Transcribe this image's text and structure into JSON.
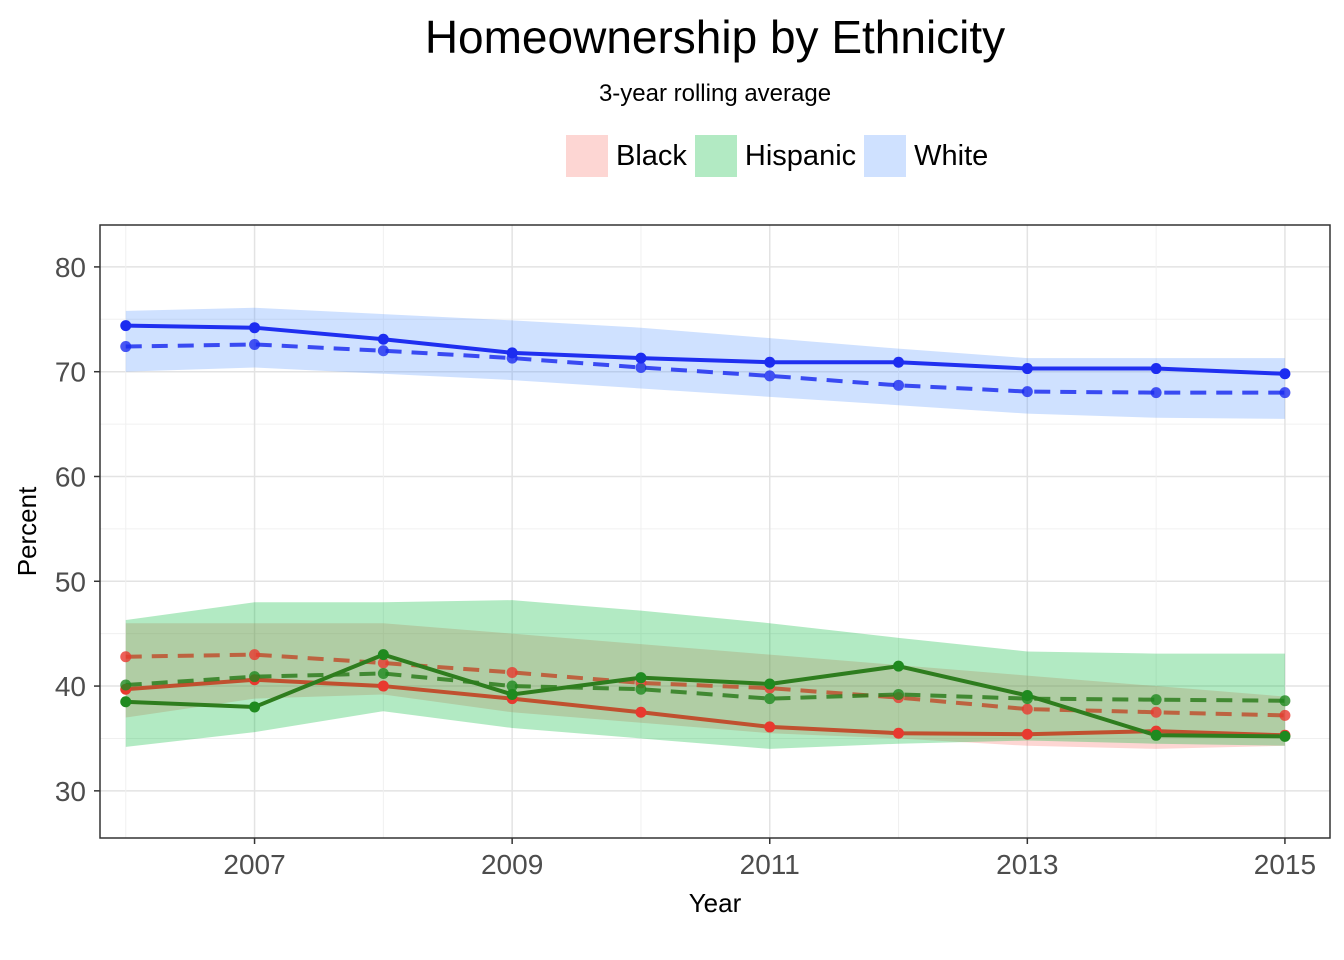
{
  "chart_data": {
    "type": "line",
    "title": "Homeownership by Ethnicity",
    "subtitle": "3-year rolling average",
    "xlabel": "Year",
    "ylabel": "Percent",
    "xlim": [
      2005.8,
      2015.35
    ],
    "ylim": [
      25.5,
      84
    ],
    "x_ticks": [
      2007,
      2009,
      2011,
      2013,
      2015
    ],
    "y_ticks": [
      30,
      40,
      50,
      60,
      70,
      80
    ],
    "grid": true,
    "legend_position": "top",
    "x": [
      2006,
      2007,
      2008,
      2009,
      2010,
      2011,
      2012,
      2013,
      2014,
      2015
    ],
    "series": [
      {
        "name": "Black",
        "key_color": "#f8766d",
        "line_color": "#c0502f",
        "point_color": "#e8392f",
        "band_color": "#f8766d",
        "values": [
          39.7,
          40.6,
          40.0,
          38.8,
          37.5,
          36.1,
          35.5,
          35.4,
          35.7,
          35.3
        ],
        "rolling_average": [
          42.8,
          43.0,
          42.2,
          41.3,
          40.3,
          39.8,
          38.9,
          37.8,
          37.5,
          37.2
        ],
        "band_low": [
          37.0,
          38.8,
          39.2,
          37.5,
          36.5,
          35.5,
          35.0,
          34.3,
          34.0,
          34.3
        ],
        "band_high": [
          46.0,
          46.0,
          46.0,
          45.0,
          44.0,
          43.0,
          42.0,
          41.0,
          40.0,
          39.0
        ]
      },
      {
        "name": "Hispanic",
        "key_color": "#00ba38",
        "line_color": "#2e7d1e",
        "point_color": "#1f8a1f",
        "band_color": "#00ba38",
        "values": [
          38.5,
          38.0,
          43.0,
          39.2,
          40.8,
          40.2,
          41.9,
          39.1,
          35.3,
          35.2
        ],
        "rolling_average": [
          40.1,
          40.9,
          41.2,
          40.0,
          39.7,
          38.8,
          39.2,
          38.8,
          38.7,
          38.6
        ],
        "band_low": [
          34.2,
          35.6,
          37.6,
          36.0,
          35.0,
          34.0,
          34.5,
          34.8,
          34.5,
          34.3
        ],
        "band_high": [
          46.3,
          48.0,
          48.0,
          48.2,
          47.2,
          46.0,
          44.6,
          43.3,
          43.1,
          43.1
        ]
      },
      {
        "name": "White",
        "key_color": "#619cff",
        "line_color": "#1f2ff0",
        "point_color": "#1c2cf0",
        "band_color": "#619cff",
        "values": [
          74.4,
          74.2,
          73.1,
          71.8,
          71.3,
          70.9,
          70.9,
          70.3,
          70.3,
          69.8
        ],
        "rolling_average": [
          72.4,
          72.6,
          72.0,
          71.3,
          70.4,
          69.6,
          68.7,
          68.1,
          68.0,
          68.0
        ],
        "band_low": [
          70.0,
          70.4,
          69.8,
          69.2,
          68.4,
          67.6,
          66.8,
          66.0,
          65.6,
          65.5
        ],
        "band_high": [
          75.8,
          76.1,
          75.5,
          74.9,
          74.2,
          73.2,
          72.2,
          71.3,
          71.3,
          71.3
        ]
      }
    ]
  }
}
